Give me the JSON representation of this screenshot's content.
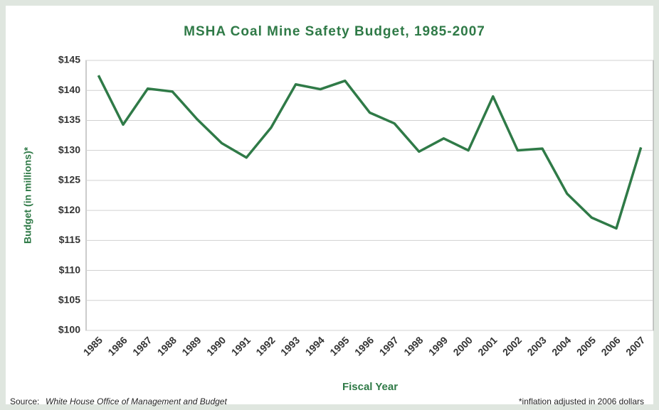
{
  "chart_data": {
    "type": "line",
    "title": "MSHA Coal Mine Safety Budget, 1985-2007",
    "y_label": "Budget (in millions)*",
    "x_label": "Fiscal Year",
    "source_label": "Source:",
    "source_text": "White House Office of Management and Budget",
    "footnote": "*inflation adjusted in 2006 dollars",
    "categories": [
      "1985",
      "1986",
      "1987",
      "1988",
      "1989",
      "1990",
      "1991",
      "1992",
      "1993",
      "1994",
      "1995",
      "1996",
      "1997",
      "1998",
      "1999",
      "2000",
      "2001",
      "2002",
      "2003",
      "2004",
      "2005",
      "2006",
      "2007"
    ],
    "series": [
      {
        "name": "MSHA budget",
        "color": "#2f7a47",
        "values": [
          142.5,
          134.3,
          140.3,
          139.8,
          135.2,
          131.2,
          128.8,
          133.8,
          141.0,
          140.2,
          141.6,
          136.3,
          134.5,
          129.8,
          132.0,
          130.0,
          139.0,
          130.0,
          130.3,
          122.8,
          118.8,
          117.0,
          130.5
        ]
      }
    ],
    "ylim": [
      100,
      145
    ],
    "yticks": [
      {
        "value": 100,
        "label": "$100"
      },
      {
        "value": 105,
        "label": "$105"
      },
      {
        "value": 110,
        "label": "$110"
      },
      {
        "value": 115,
        "label": "$115"
      },
      {
        "value": 120,
        "label": "$120"
      },
      {
        "value": 125,
        "label": "$125"
      },
      {
        "value": 130,
        "label": "$130"
      },
      {
        "value": 135,
        "label": "$135"
      },
      {
        "value": 140,
        "label": "$140"
      },
      {
        "value": 145,
        "label": "$145"
      }
    ],
    "grid": true
  }
}
